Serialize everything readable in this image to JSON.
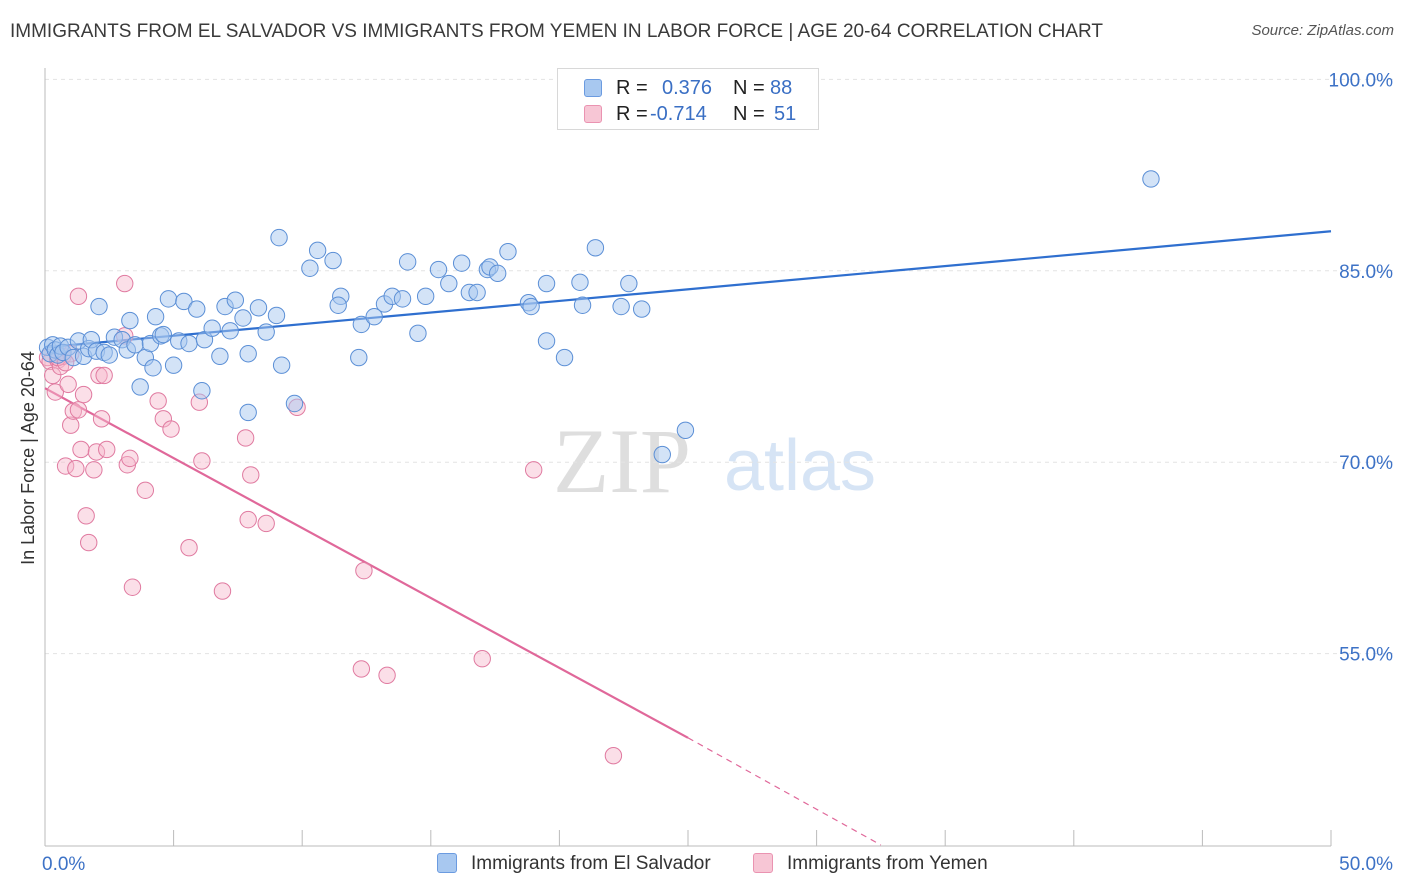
{
  "header": {
    "title": "IMMIGRANTS FROM EL SALVADOR VS IMMIGRANTS FROM YEMEN IN LABOR FORCE | AGE 20-64 CORRELATION CHART",
    "source": "Source: ZipAtlas.com"
  },
  "watermark": {
    "zip": "ZIP",
    "atlas": "atlas"
  },
  "legend": {
    "rows": [
      {
        "r_label": "R =",
        "r_value": "0.376",
        "n_label": "N =",
        "n_value": "88",
        "color": "#a8c8f0"
      },
      {
        "r_label": "R =",
        "r_value": "-0.714",
        "n_label": "N =",
        "n_value": "51",
        "color": "#f7b8cb"
      }
    ]
  },
  "bottom_legend": {
    "items": [
      {
        "label": "Immigrants from El Salvador",
        "color": "#a8c8f0"
      },
      {
        "label": "Immigrants from Yemen",
        "color": "#f7b8cb"
      }
    ]
  },
  "chart_data": {
    "type": "scatter",
    "title": "IMMIGRANTS FROM EL SALVADOR VS IMMIGRANTS FROM YEMEN IN LABOR FORCE | AGE 20-64 CORRELATION CHART",
    "xlabel": "",
    "ylabel": "In Labor Force | Age 20-64",
    "xlim": [
      0,
      50
    ],
    "ylim": [
      40,
      102
    ],
    "x_tick_labels": [
      "0.0%",
      "50.0%"
    ],
    "y_ticks": [
      55,
      70,
      85,
      100
    ],
    "y_tick_labels": [
      "55.0%",
      "70.0%",
      "85.0%",
      "100.0%"
    ],
    "grid": "horizontal dashed",
    "legend_position": "top-center",
    "colors": {
      "el_salvador_fill": "#a8c8f0",
      "el_salvador_edge": "#5b8fd6",
      "el_salvador_line": "#2f6fcf",
      "yemen_fill": "#f7b8cb",
      "yemen_edge": "#e07aa0",
      "yemen_line": "#e0689a"
    },
    "series": [
      {
        "name": "Immigrants from El Salvador",
        "trend": {
          "x": [
            0,
            50
          ],
          "y": [
            79.0,
            88.1
          ]
        },
        "points": [
          [
            0.1,
            79.0
          ],
          [
            0.2,
            78.5
          ],
          [
            0.3,
            79.2
          ],
          [
            0.4,
            78.8
          ],
          [
            0.5,
            78.4
          ],
          [
            0.6,
            79.1
          ],
          [
            0.7,
            78.6
          ],
          [
            0.9,
            79.0
          ],
          [
            1.1,
            78.2
          ],
          [
            1.3,
            79.5
          ],
          [
            1.5,
            78.3
          ],
          [
            1.7,
            78.9
          ],
          [
            1.8,
            79.6
          ],
          [
            2.0,
            78.7
          ],
          [
            2.1,
            82.2
          ],
          [
            2.3,
            78.6
          ],
          [
            2.5,
            78.4
          ],
          [
            2.7,
            79.8
          ],
          [
            3.0,
            79.6
          ],
          [
            3.2,
            78.8
          ],
          [
            3.3,
            81.1
          ],
          [
            3.5,
            79.2
          ],
          [
            3.7,
            75.9
          ],
          [
            3.9,
            78.2
          ],
          [
            4.1,
            79.3
          ],
          [
            4.2,
            77.4
          ],
          [
            4.3,
            81.4
          ],
          [
            4.5,
            79.9
          ],
          [
            4.6,
            80.0
          ],
          [
            4.8,
            82.8
          ],
          [
            5.0,
            77.6
          ],
          [
            5.2,
            79.5
          ],
          [
            5.4,
            82.6
          ],
          [
            5.6,
            79.3
          ],
          [
            5.9,
            82.0
          ],
          [
            6.2,
            79.6
          ],
          [
            6.1,
            75.6
          ],
          [
            6.5,
            80.5
          ],
          [
            6.8,
            78.3
          ],
          [
            7.0,
            82.2
          ],
          [
            7.2,
            80.3
          ],
          [
            7.4,
            82.7
          ],
          [
            7.7,
            81.3
          ],
          [
            7.9,
            73.9
          ],
          [
            7.9,
            78.5
          ],
          [
            8.3,
            82.1
          ],
          [
            8.6,
            80.2
          ],
          [
            9.0,
            81.5
          ],
          [
            9.1,
            87.6
          ],
          [
            9.7,
            74.6
          ],
          [
            9.2,
            77.6
          ],
          [
            10.3,
            85.2
          ],
          [
            10.6,
            86.6
          ],
          [
            11.2,
            85.8
          ],
          [
            11.5,
            83.0
          ],
          [
            11.4,
            82.3
          ],
          [
            12.3,
            80.8
          ],
          [
            12.2,
            78.2
          ],
          [
            12.8,
            81.4
          ],
          [
            13.2,
            82.4
          ],
          [
            13.5,
            83.0
          ],
          [
            13.9,
            82.8
          ],
          [
            14.1,
            85.7
          ],
          [
            14.5,
            80.1
          ],
          [
            14.8,
            83.0
          ],
          [
            15.3,
            85.1
          ],
          [
            15.7,
            84.0
          ],
          [
            16.2,
            85.6
          ],
          [
            16.5,
            83.3
          ],
          [
            16.8,
            83.3
          ],
          [
            17.2,
            85.1
          ],
          [
            17.3,
            85.3
          ],
          [
            17.6,
            84.8
          ],
          [
            18.0,
            86.5
          ],
          [
            18.8,
            82.5
          ],
          [
            18.9,
            82.2
          ],
          [
            19.5,
            79.5
          ],
          [
            19.5,
            84.0
          ],
          [
            20.2,
            78.2
          ],
          [
            20.8,
            84.1
          ],
          [
            20.9,
            82.3
          ],
          [
            21.4,
            86.8
          ],
          [
            22.4,
            82.2
          ],
          [
            22.7,
            84.0
          ],
          [
            23.2,
            82.0
          ],
          [
            24.0,
            70.6
          ],
          [
            24.9,
            72.5
          ],
          [
            43.0,
            92.2
          ]
        ]
      },
      {
        "name": "Immigrants from Yemen",
        "trend": {
          "x": [
            0,
            25
          ],
          "y": [
            75.8,
            48.4
          ]
        },
        "trend_extension": {
          "x": [
            25,
            32.5
          ],
          "y": [
            48.4,
            40.0
          ]
        },
        "points": [
          [
            0.1,
            78.2
          ],
          [
            0.2,
            77.9
          ],
          [
            0.3,
            76.8
          ],
          [
            0.4,
            75.5
          ],
          [
            0.5,
            78.0
          ],
          [
            0.6,
            77.5
          ],
          [
            0.7,
            78.3
          ],
          [
            0.8,
            69.7
          ],
          [
            0.9,
            76.1
          ],
          [
            1.0,
            72.9
          ],
          [
            1.1,
            74.0
          ],
          [
            1.2,
            69.5
          ],
          [
            1.3,
            74.1
          ],
          [
            1.4,
            71.0
          ],
          [
            1.5,
            75.3
          ],
          [
            1.6,
            65.8
          ],
          [
            1.7,
            63.7
          ],
          [
            1.9,
            69.4
          ],
          [
            2.0,
            70.8
          ],
          [
            2.1,
            76.8
          ],
          [
            2.2,
            73.4
          ],
          [
            2.3,
            76.8
          ],
          [
            2.4,
            71.0
          ],
          [
            1.3,
            83.0
          ],
          [
            3.1,
            79.9
          ],
          [
            3.1,
            84.0
          ],
          [
            3.2,
            69.8
          ],
          [
            3.3,
            70.3
          ],
          [
            3.4,
            60.2
          ],
          [
            3.9,
            67.8
          ],
          [
            4.4,
            74.8
          ],
          [
            4.6,
            73.4
          ],
          [
            4.9,
            72.6
          ],
          [
            5.6,
            63.3
          ],
          [
            6.0,
            74.7
          ],
          [
            6.1,
            70.1
          ],
          [
            6.9,
            59.9
          ],
          [
            7.8,
            71.9
          ],
          [
            7.9,
            65.5
          ],
          [
            8.0,
            69.0
          ],
          [
            8.6,
            65.2
          ],
          [
            9.8,
            74.3
          ],
          [
            12.4,
            61.5
          ],
          [
            12.3,
            53.8
          ],
          [
            13.3,
            53.3
          ],
          [
            17.0,
            54.6
          ],
          [
            19.0,
            69.4
          ],
          [
            22.1,
            47.0
          ],
          [
            0.5,
            78.2
          ],
          [
            1.0,
            78.5
          ],
          [
            0.8,
            77.8
          ]
        ]
      }
    ]
  }
}
